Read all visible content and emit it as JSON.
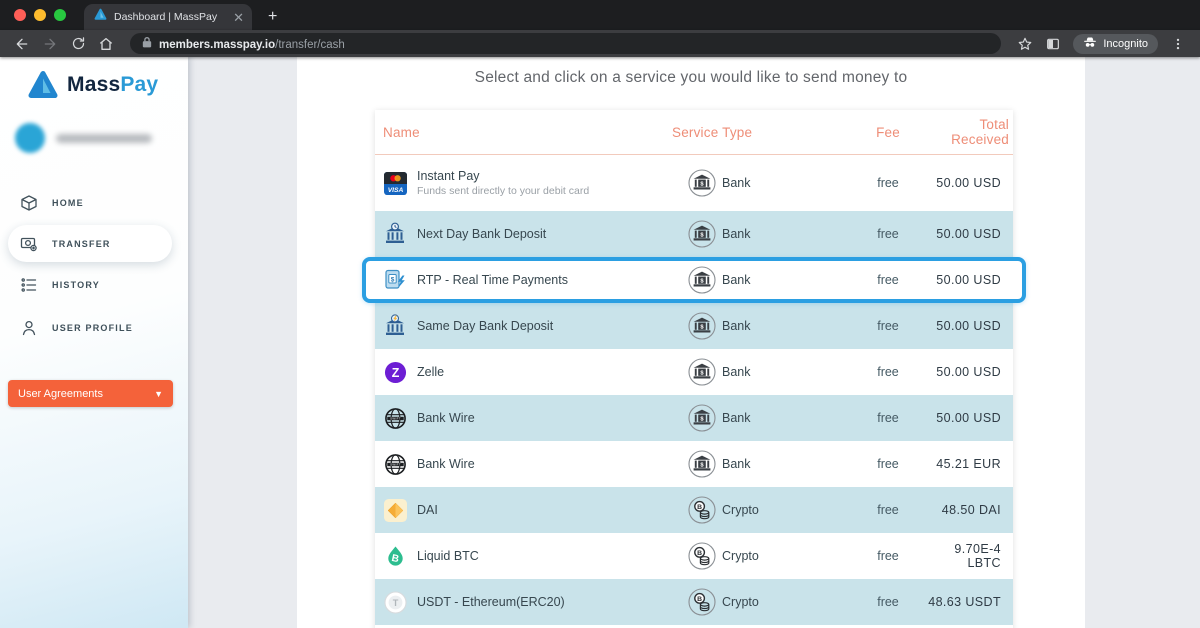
{
  "browser": {
    "tab_title": "Dashboard | MassPay",
    "url_domain": "members.masspay.io",
    "url_path": "/transfer/cash",
    "incognito_label": "Incognito"
  },
  "sidebar": {
    "brand_mass": "Mass",
    "brand_pay": "Pay",
    "nav": [
      {
        "label": "HOME",
        "icon": "cube",
        "active": false
      },
      {
        "label": "TRANSFER",
        "icon": "transfer",
        "active": true
      },
      {
        "label": "HISTORY",
        "icon": "history",
        "active": false
      },
      {
        "label": "USER PROFILE",
        "icon": "user",
        "active": false
      }
    ],
    "user_agreements_label": "User Agreements"
  },
  "main": {
    "heading": "Select and click on a service you would like to send money to",
    "table": {
      "headers": {
        "name": "Name",
        "service_type": "Service Type",
        "fee": "Fee",
        "total_received": "Total Received"
      },
      "rows": [
        {
          "name": "Instant Pay",
          "subtitle": "Funds sent directly to your debit card",
          "icon": "visa-card",
          "service_type": "Bank",
          "service_icon": "bank",
          "fee": "free",
          "total": "50.00 USD",
          "highlight": false,
          "selected": false
        },
        {
          "name": "Next Day Bank Deposit",
          "subtitle": "",
          "icon": "bank-clock",
          "service_type": "Bank",
          "service_icon": "bank",
          "fee": "free",
          "total": "50.00 USD",
          "highlight": true,
          "selected": false
        },
        {
          "name": "RTP - Real Time Payments",
          "subtitle": "",
          "icon": "rtp",
          "service_type": "Bank",
          "service_icon": "bank",
          "fee": "free",
          "total": "50.00 USD",
          "highlight": false,
          "selected": true
        },
        {
          "name": "Same Day Bank Deposit",
          "subtitle": "",
          "icon": "bank-bolt",
          "service_type": "Bank",
          "service_icon": "bank",
          "fee": "free",
          "total": "50.00 USD",
          "highlight": true,
          "selected": false
        },
        {
          "name": "Zelle",
          "subtitle": "",
          "icon": "zelle",
          "service_type": "Bank",
          "service_icon": "bank",
          "fee": "free",
          "total": "50.00 USD",
          "highlight": false,
          "selected": false
        },
        {
          "name": "Bank Wire",
          "subtitle": "",
          "icon": "swift-globe",
          "service_type": "Bank",
          "service_icon": "bank",
          "fee": "free",
          "total": "50.00 USD",
          "highlight": true,
          "selected": false
        },
        {
          "name": "Bank Wire",
          "subtitle": "",
          "icon": "swift-globe",
          "service_type": "Bank",
          "service_icon": "bank",
          "fee": "free",
          "total": "45.21 EUR",
          "highlight": false,
          "selected": false
        },
        {
          "name": "DAI",
          "subtitle": "",
          "icon": "dai",
          "service_type": "Crypto",
          "service_icon": "crypto",
          "fee": "free",
          "total": "48.50 DAI",
          "highlight": true,
          "selected": false
        },
        {
          "name": "Liquid BTC",
          "subtitle": "",
          "icon": "liquid-btc",
          "service_type": "Crypto",
          "service_icon": "crypto",
          "fee": "free",
          "total": "9.70E-4 LBTC",
          "highlight": false,
          "selected": false
        },
        {
          "name": "USDT - Ethereum(ERC20)",
          "subtitle": "",
          "icon": "usdt",
          "service_type": "Crypto",
          "service_icon": "crypto",
          "fee": "free",
          "total": "48.63 USDT",
          "highlight": true,
          "selected": false
        }
      ]
    }
  },
  "colors": {
    "accent_orange": "#f4623a",
    "table_header_coral": "#ee8d77",
    "row_highlight_teal": "#c9e3ea",
    "selection_blue": "#2b9fe2",
    "brand_blue": "#2a9ad6",
    "brand_navy": "#12263f",
    "traffic_red": "#ff5f57",
    "traffic_yellow": "#febc2e",
    "traffic_green": "#28c840"
  }
}
